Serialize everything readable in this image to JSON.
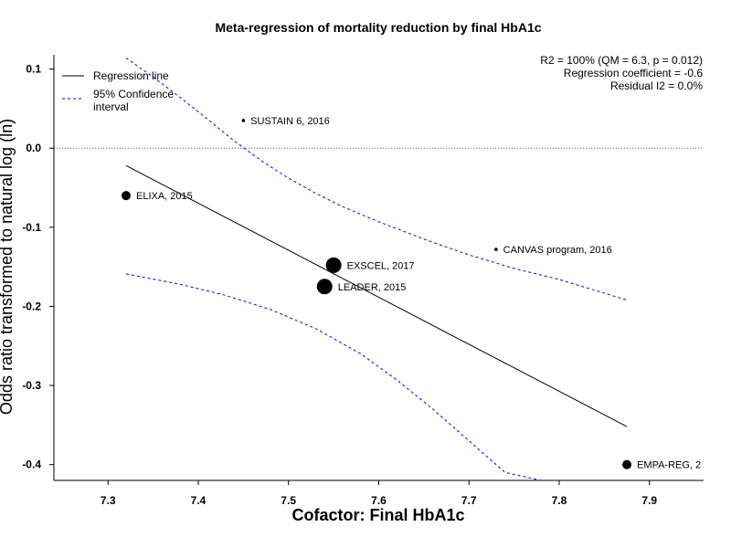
{
  "chart_data": {
    "type": "scatter",
    "title": "Meta-regression of  mortality reduction by final HbA1c",
    "xlabel": "Cofactor:  Final HbA1c",
    "ylabel": "Odds ratio transformed to natural log (ln)",
    "xlim": [
      7.24,
      7.96
    ],
    "ylim": [
      -0.42,
      0.118
    ],
    "x_ticks": [
      7.3,
      7.4,
      7.5,
      7.6,
      7.7,
      7.8,
      7.9
    ],
    "x_tick_labels": [
      "7.3",
      "7.4",
      "7.5",
      "7.6",
      "7.7",
      "7.8",
      "7.9"
    ],
    "y_ticks": [
      0.1,
      0.0,
      -0.1,
      -0.2,
      -0.3,
      -0.4
    ],
    "y_tick_labels": [
      "0.1",
      "0.0",
      "-0.1",
      "-0.2",
      "-0.3",
      "-0.4"
    ],
    "reference_line_y": 0.0,
    "points": [
      {
        "label": "SUSTAIN 6, 2016",
        "x": 7.45,
        "y": 0.035,
        "size": "tiny"
      },
      {
        "label": "ELIXA, 2015",
        "x": 7.32,
        "y": -0.06,
        "size": "medium"
      },
      {
        "label": "CANVAS program, 2016",
        "x": 7.73,
        "y": -0.128,
        "size": "tiny"
      },
      {
        "label": "EXSCEL, 2017",
        "x": 7.55,
        "y": -0.148,
        "size": "large"
      },
      {
        "label": "LEADER, 2015",
        "x": 7.54,
        "y": -0.175,
        "size": "large"
      },
      {
        "label": "EMPA-REG, 2",
        "x": 7.875,
        "y": -0.4,
        "size": "medium"
      }
    ],
    "regression_line": {
      "x": [
        7.32,
        7.875
      ],
      "y": [
        -0.022,
        -0.352
      ]
    },
    "ci_upper": {
      "x": [
        7.32,
        7.35,
        7.38,
        7.41,
        7.44,
        7.47,
        7.5,
        7.53,
        7.56,
        7.6,
        7.65,
        7.7,
        7.75,
        7.8,
        7.875
      ],
      "y": [
        0.114,
        0.09,
        0.064,
        0.037,
        0.009,
        -0.016,
        -0.038,
        -0.057,
        -0.074,
        -0.093,
        -0.115,
        -0.135,
        -0.152,
        -0.166,
        -0.192
      ]
    },
    "ci_lower": {
      "x": [
        7.32,
        7.38,
        7.43,
        7.48,
        7.53,
        7.58,
        7.62,
        7.66,
        7.7,
        7.74,
        7.78
      ],
      "y": [
        -0.159,
        -0.172,
        -0.186,
        -0.204,
        -0.228,
        -0.26,
        -0.293,
        -0.33,
        -0.37,
        -0.41,
        -0.42
      ]
    },
    "legend": {
      "placement": "top-left",
      "entries": [
        {
          "label": "Regression line",
          "style": "solid",
          "color": "#000000"
        },
        {
          "label_lines": [
            "95% Confidence",
            "interval"
          ],
          "style": "dashed",
          "color": "#0000ff"
        }
      ]
    },
    "stats_text": [
      "R2 = 100% (QM = 6.3, p = 0.012)",
      "Regression coefficient = -0.6",
      "Residual I2 = 0.0%"
    ],
    "colors": {
      "regression": "#000000",
      "ci": "#0000ff",
      "points": "#000000",
      "reference": "#555555"
    }
  }
}
